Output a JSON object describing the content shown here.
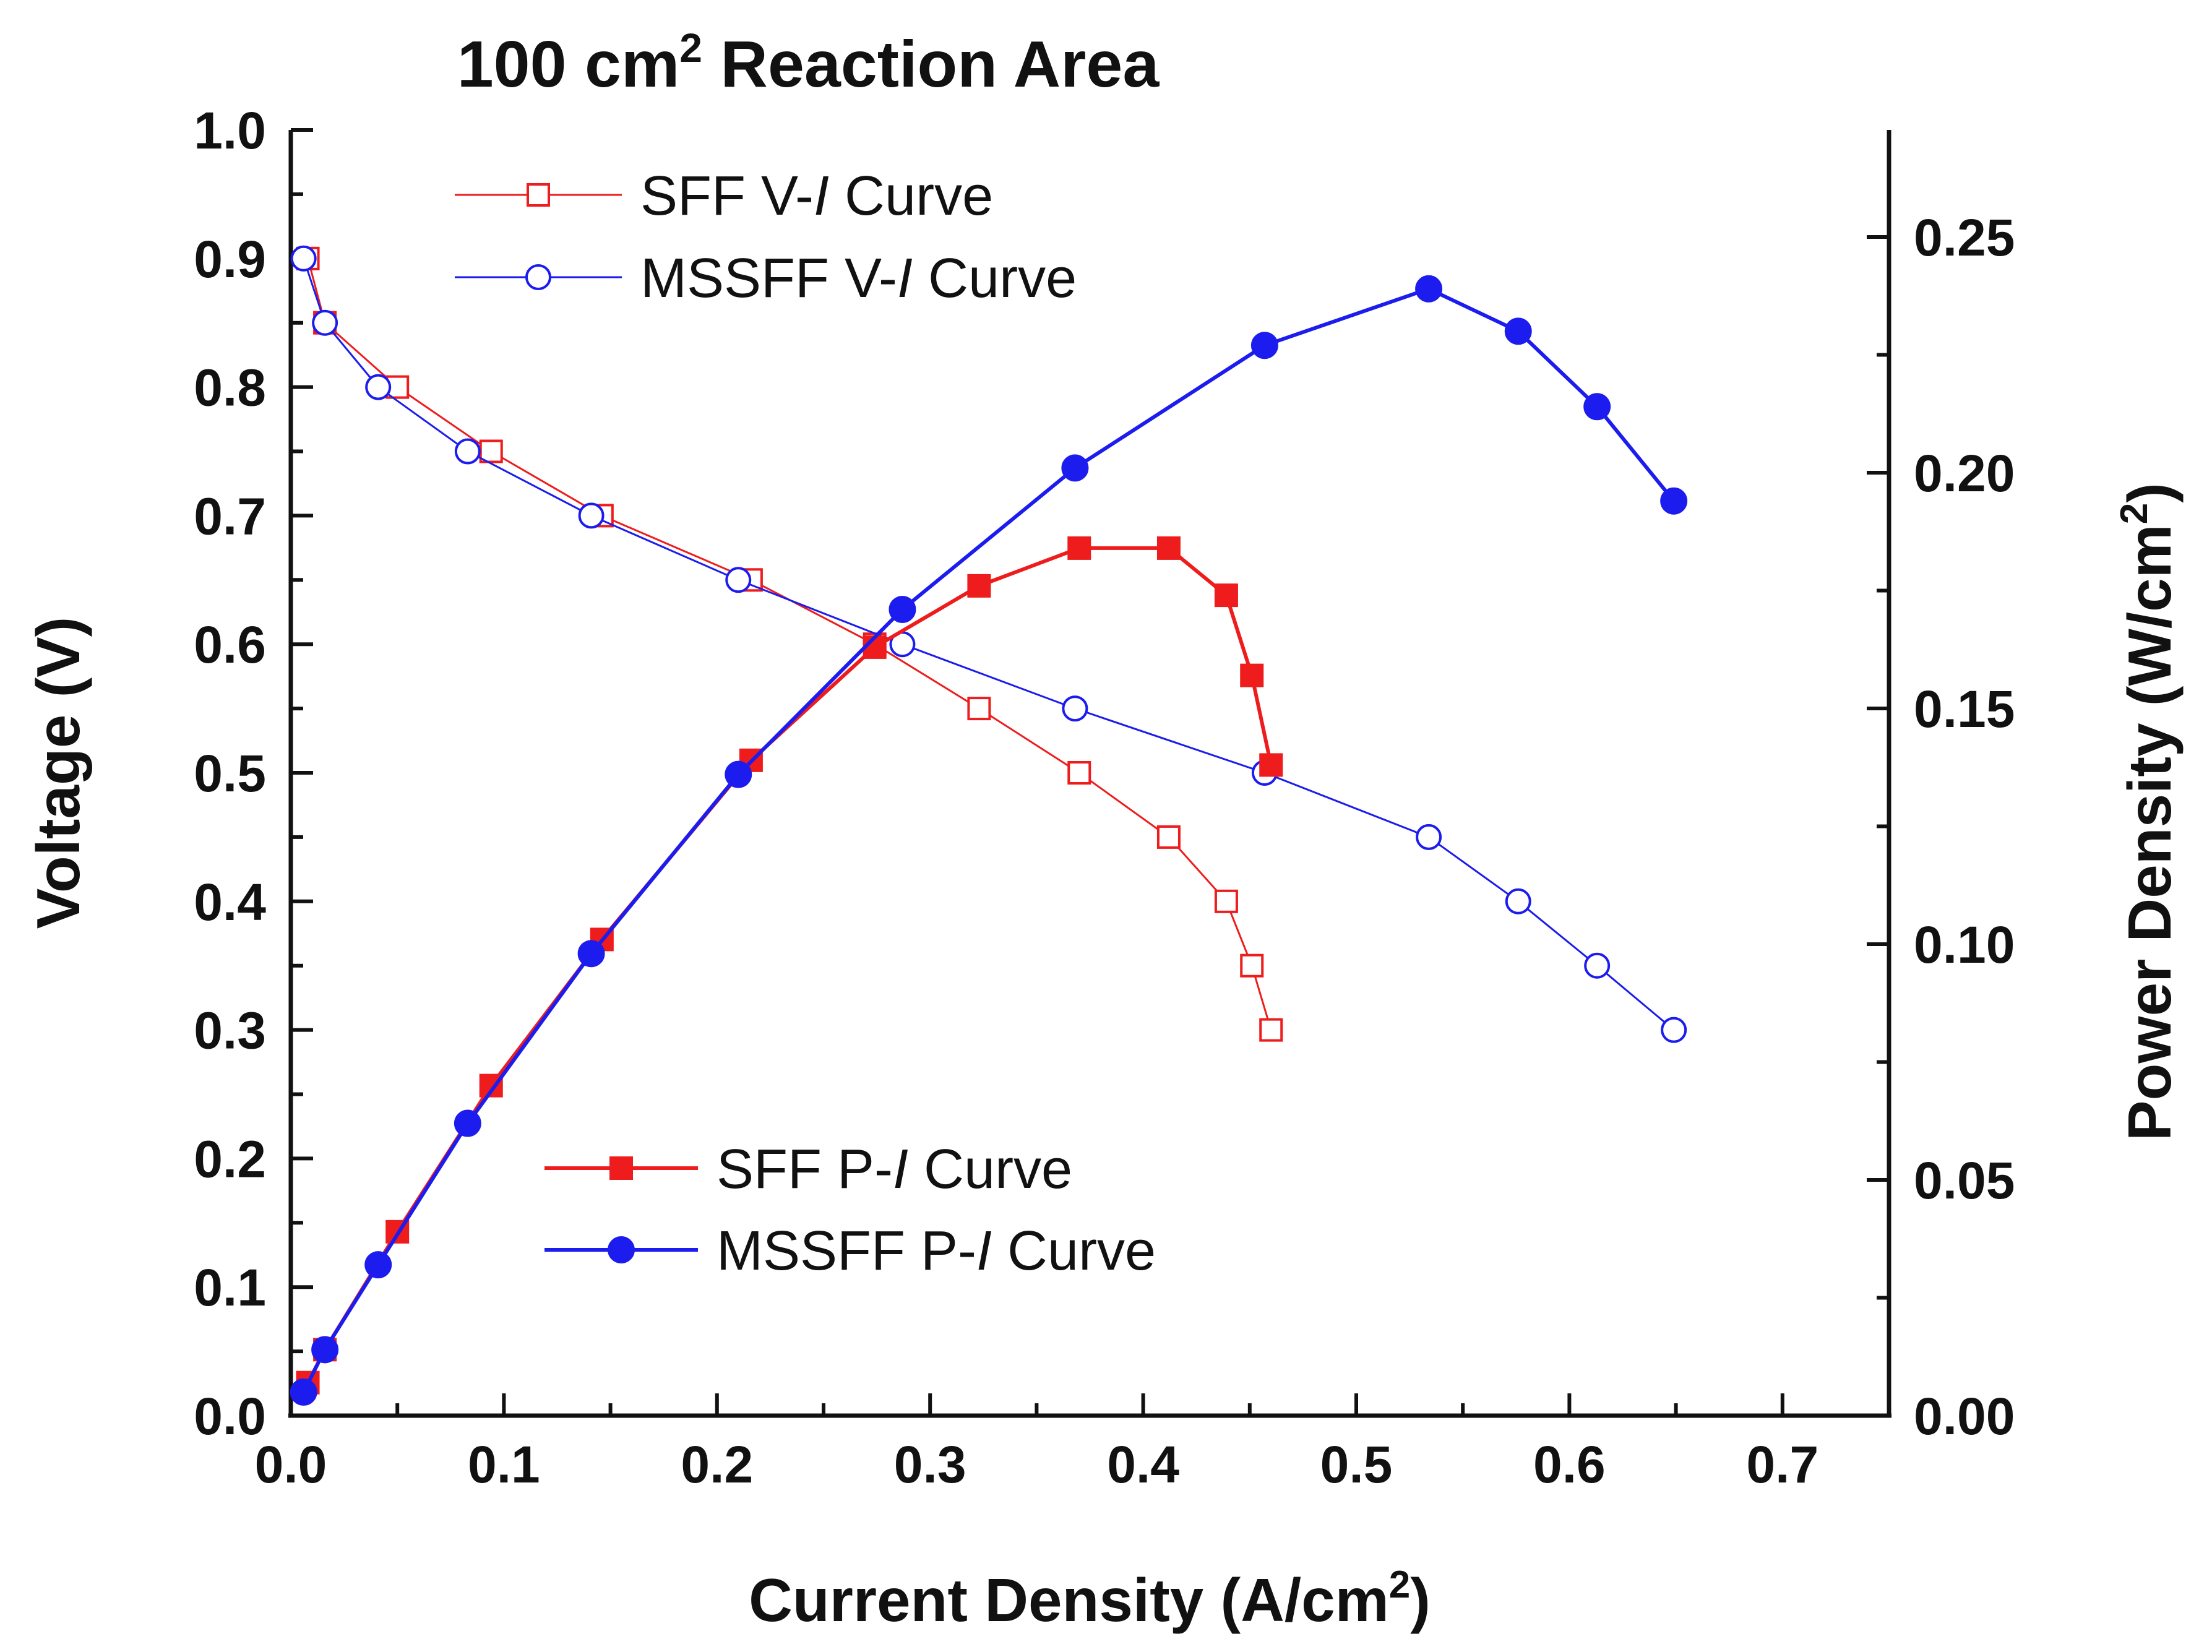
{
  "chart_data": {
    "type": "line",
    "title": {
      "main": "100 cm",
      "sup": "2",
      "rest": " Reaction Area"
    },
    "xlabel": {
      "main": "Current Density (A/cm",
      "sup": "2",
      "rest": ")"
    },
    "ylabel": "Voltage (V)",
    "y2label": {
      "main": "Power Density (W/cm",
      "sup": "2",
      "rest": ")"
    },
    "xlim": [
      0.0,
      0.75
    ],
    "ylim": [
      0.0,
      1.0
    ],
    "y2lim": [
      0.0,
      0.2727
    ],
    "x_ticks": [
      "0.0",
      "0.1",
      "0.2",
      "0.3",
      "0.4",
      "0.5",
      "0.6",
      "0.7"
    ],
    "y_ticks": [
      "0.0",
      "0.1",
      "0.2",
      "0.3",
      "0.4",
      "0.5",
      "0.6",
      "0.7",
      "0.8",
      "0.9",
      "1.0"
    ],
    "y2_ticks": [
      "0.00",
      "0.05",
      "0.10",
      "0.15",
      "0.20",
      "0.25"
    ],
    "series": [
      {
        "name": "SFF V-I Curve",
        "legend": {
          "pre": "SFF V-",
          "italic": "I",
          "post": " Curve"
        },
        "axis": "left",
        "marker": "square",
        "filled": false,
        "color": "#ee1c1c",
        "x": [
          0.008,
          0.016,
          0.05,
          0.094,
          0.146,
          0.216,
          0.274,
          0.323,
          0.37,
          0.412,
          0.439,
          0.451,
          0.46
        ],
        "y": [
          0.9,
          0.85,
          0.8,
          0.75,
          0.7,
          0.65,
          0.6,
          0.55,
          0.5,
          0.45,
          0.4,
          0.35,
          0.3
        ]
      },
      {
        "name": "MSSFF V-I Curve",
        "legend": {
          "pre": "MSSFF V-",
          "italic": "I",
          "post": " Curve"
        },
        "axis": "left",
        "marker": "circle",
        "filled": false,
        "color": "#1c1cee",
        "x": [
          0.006,
          0.016,
          0.041,
          0.083,
          0.141,
          0.21,
          0.287,
          0.368,
          0.457,
          0.534,
          0.576,
          0.613,
          0.649
        ],
        "y": [
          0.9,
          0.85,
          0.8,
          0.75,
          0.7,
          0.65,
          0.6,
          0.55,
          0.5,
          0.45,
          0.4,
          0.35,
          0.3
        ]
      },
      {
        "name": "SFF P-I Curve",
        "legend": {
          "pre": "SFF P-",
          "italic": "I",
          "post": " Curve"
        },
        "axis": "right",
        "marker": "square",
        "filled": true,
        "color": "#ee1c1c",
        "x": [
          0.008,
          0.016,
          0.05,
          0.094,
          0.146,
          0.216,
          0.274,
          0.323,
          0.37,
          0.412,
          0.439,
          0.451,
          0.46
        ],
        "y": [
          0.007,
          0.014,
          0.039,
          0.07,
          0.101,
          0.139,
          0.163,
          0.176,
          0.184,
          0.184,
          0.174,
          0.157,
          0.138
        ]
      },
      {
        "name": "MSSFF P-I Curve",
        "legend": {
          "pre": "MSSFF P-",
          "italic": "I",
          "post": " Curve"
        },
        "axis": "right",
        "marker": "circle",
        "filled": true,
        "color": "#1c1cee",
        "x": [
          0.006,
          0.016,
          0.041,
          0.083,
          0.141,
          0.21,
          0.287,
          0.368,
          0.457,
          0.534,
          0.576,
          0.613,
          0.649
        ],
        "y": [
          0.005,
          0.014,
          0.032,
          0.062,
          0.098,
          0.136,
          0.171,
          0.201,
          0.227,
          0.239,
          0.23,
          0.214,
          0.194
        ]
      }
    ],
    "legend_positions": [
      "upper-left",
      "lower-center"
    ],
    "grid": false
  }
}
